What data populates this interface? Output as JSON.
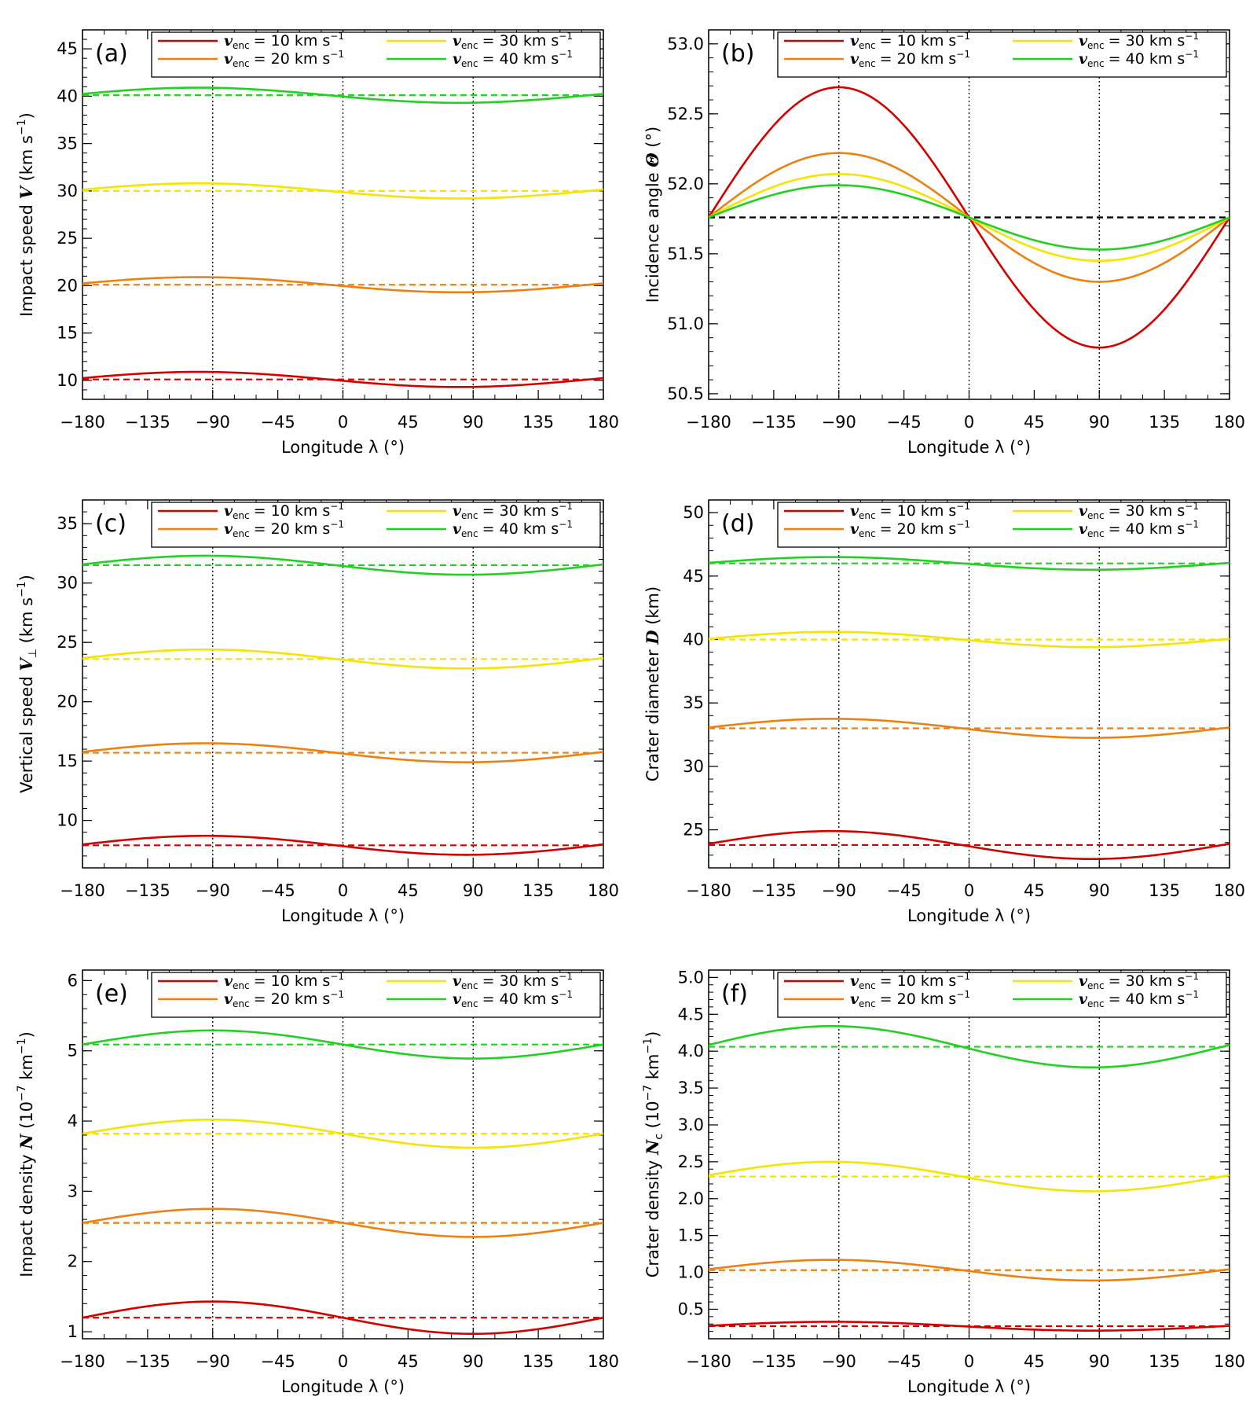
{
  "figure": {
    "legend": [
      {
        "symbol": "v",
        "subscript": "enc",
        "text": "= 10 km s",
        "superscript": "−1",
        "color": "#d40000"
      },
      {
        "symbol": "v",
        "subscript": "enc",
        "text": "= 20 km s",
        "superscript": "−1",
        "color": "#ee8010"
      },
      {
        "symbol": "v",
        "subscript": "enc",
        "text": "= 30 km s",
        "superscript": "−1",
        "color": "#f4e400"
      },
      {
        "symbol": "v",
        "subscript": "enc",
        "text": "= 40 km s",
        "superscript": "−1",
        "color": "#22d022"
      }
    ],
    "reference_line_note": "dashed lines: longitude-averaged values; dotted verticals at λ = −90°, 0°, 90°"
  },
  "chart_data": [
    {
      "panel": "(a)",
      "type": "line",
      "ylabel_pre": "Impact speed ",
      "ylabel_var": "V",
      "ylabel_post": " (km s",
      "ylabel_sup": "−1",
      "ylabel_close": ")",
      "xlabel": "Longitude λ (°)",
      "xlim": [
        -180,
        180
      ],
      "ylim": [
        8,
        47
      ],
      "xticks": [
        -180,
        -135,
        -90,
        -45,
        0,
        45,
        90,
        135,
        180
      ],
      "xtick_labels": [
        "−180",
        "−135",
        "−90",
        "−45",
        "0",
        "45",
        "90",
        "135",
        "180"
      ],
      "yticks": [
        10,
        15,
        20,
        25,
        30,
        35,
        40,
        45
      ],
      "ytick_labels": [
        "10",
        "15",
        "20",
        "25",
        "30",
        "35",
        "40",
        "45"
      ],
      "vlines": [
        -90,
        0,
        90
      ],
      "series": [
        {
          "name": "v_enc = 10 km s−1",
          "mean": 10.1,
          "amplitude": 0.8,
          "phase_shift": -10,
          "color": "#d40000"
        },
        {
          "name": "v_enc = 20 km s−1",
          "mean": 20.1,
          "amplitude": 0.8,
          "phase_shift": -10,
          "color": "#ee8010"
        },
        {
          "name": "v_enc = 30 km s−1",
          "mean": 30.0,
          "amplitude": 0.8,
          "phase_shift": -10,
          "color": "#f4e400"
        },
        {
          "name": "v_enc = 40 km s−1",
          "mean": 40.1,
          "amplitude": 0.8,
          "phase_shift": -10,
          "color": "#22d022"
        }
      ]
    },
    {
      "panel": "(b)",
      "type": "line",
      "ylabel_pre": "Incidence angle ",
      "ylabel_var": "Θ",
      "ylabel_post": " (°)",
      "ylabel_sup": "",
      "ylabel_close": "",
      "xlabel": "Longitude λ (°)",
      "xlim": [
        -180,
        180
      ],
      "ylim": [
        50.46,
        53.1
      ],
      "xticks": [
        -180,
        -135,
        -90,
        -45,
        0,
        45,
        90,
        135,
        180
      ],
      "xtick_labels": [
        "−180",
        "−135",
        "−90",
        "−45",
        "0",
        "45",
        "90",
        "135",
        "180"
      ],
      "yticks": [
        50.5,
        51.0,
        51.5,
        52.0,
        52.5,
        53.0
      ],
      "ytick_labels": [
        "50.5",
        "51.0",
        "51.5",
        "52.0",
        "52.5",
        "53.0"
      ],
      "vlines": [
        -90,
        0,
        90
      ],
      "reference": {
        "value": 51.76,
        "color": "#000000"
      },
      "series": [
        {
          "name": "v_enc = 10 km s−1",
          "mean": 51.76,
          "amplitude": 0.93,
          "phase_shift": 0,
          "color": "#d40000",
          "hide_mean": true
        },
        {
          "name": "v_enc = 20 km s−1",
          "mean": 51.76,
          "amplitude": 0.46,
          "phase_shift": 0,
          "color": "#ee8010",
          "hide_mean": true
        },
        {
          "name": "v_enc = 30 km s−1",
          "mean": 51.76,
          "amplitude": 0.31,
          "phase_shift": 0,
          "color": "#f4e400",
          "hide_mean": true
        },
        {
          "name": "v_enc = 40 km s−1",
          "mean": 51.76,
          "amplitude": 0.23,
          "phase_shift": 0,
          "color": "#22d022",
          "hide_mean": true
        }
      ]
    },
    {
      "panel": "(c)",
      "type": "line",
      "ylabel_pre": "Vertical speed ",
      "ylabel_var": "V",
      "ylabel_var_sub": "⊥",
      "ylabel_post": " (km s",
      "ylabel_sup": "−1",
      "ylabel_close": ")",
      "xlabel": "Longitude λ (°)",
      "xlim": [
        -180,
        180
      ],
      "ylim": [
        6,
        37
      ],
      "xticks": [
        -180,
        -135,
        -90,
        -45,
        0,
        45,
        90,
        135,
        180
      ],
      "xtick_labels": [
        "−180",
        "−135",
        "−90",
        "−45",
        "0",
        "45",
        "90",
        "135",
        "180"
      ],
      "yticks": [
        10,
        15,
        20,
        25,
        30,
        35
      ],
      "ytick_labels": [
        "10",
        "15",
        "20",
        "25",
        "30",
        "35"
      ],
      "vlines": [
        -90,
        0,
        90
      ],
      "series": [
        {
          "name": "v_enc = 10 km s−1",
          "mean": 7.9,
          "amplitude": 0.8,
          "phase_shift": -5,
          "color": "#d40000"
        },
        {
          "name": "v_enc = 20 km s−1",
          "mean": 15.7,
          "amplitude": 0.8,
          "phase_shift": -5,
          "color": "#ee8010"
        },
        {
          "name": "v_enc = 30 km s−1",
          "mean": 23.6,
          "amplitude": 0.8,
          "phase_shift": -5,
          "color": "#f4e400"
        },
        {
          "name": "v_enc = 40 km s−1",
          "mean": 31.5,
          "amplitude": 0.8,
          "phase_shift": -5,
          "color": "#22d022"
        }
      ]
    },
    {
      "panel": "(d)",
      "type": "line",
      "ylabel_pre": "Crater diameter ",
      "ylabel_var": "D",
      "ylabel_post": " (km)",
      "ylabel_sup": "",
      "ylabel_close": "",
      "xlabel": "Longitude λ (°)",
      "xlim": [
        -180,
        180
      ],
      "ylim": [
        22,
        51
      ],
      "xticks": [
        -180,
        -135,
        -90,
        -45,
        0,
        45,
        90,
        135,
        180
      ],
      "xtick_labels": [
        "−180",
        "−135",
        "−90",
        "−45",
        "0",
        "45",
        "90",
        "135",
        "180"
      ],
      "yticks": [
        25,
        30,
        35,
        40,
        45,
        50
      ],
      "ytick_labels": [
        "25",
        "30",
        "35",
        "40",
        "45",
        "50"
      ],
      "vlines": [
        -90,
        0,
        90
      ],
      "series": [
        {
          "name": "v_enc = 10 km s−1",
          "mean": 23.8,
          "amplitude": 1.1,
          "phase_shift": -5,
          "color": "#d40000"
        },
        {
          "name": "v_enc = 20 km s−1",
          "mean": 33.0,
          "amplitude": 0.75,
          "phase_shift": -5,
          "color": "#ee8010"
        },
        {
          "name": "v_enc = 30 km s−1",
          "mean": 40.0,
          "amplitude": 0.6,
          "phase_shift": -5,
          "color": "#f4e400"
        },
        {
          "name": "v_enc = 40 km s−1",
          "mean": 46.0,
          "amplitude": 0.5,
          "phase_shift": -5,
          "color": "#22d022"
        }
      ]
    },
    {
      "panel": "(e)",
      "type": "line",
      "ylabel_pre": "Impact density ",
      "ylabel_var": "N",
      "ylabel_post": " (10",
      "ylabel_sup": "−7",
      "ylabel_close": " km",
      "ylabel_sup2": "−1",
      "ylabel_end": ")",
      "xlabel": "Longitude λ (°)",
      "xlim": [
        -180,
        180
      ],
      "ylim": [
        0.9,
        6.15
      ],
      "xticks": [
        -180,
        -135,
        -90,
        -45,
        0,
        45,
        90,
        135,
        180
      ],
      "xtick_labels": [
        "−180",
        "−135",
        "−90",
        "−45",
        "0",
        "45",
        "90",
        "135",
        "180"
      ],
      "yticks": [
        1,
        2,
        3,
        4,
        5,
        6
      ],
      "ytick_labels": [
        "1",
        "2",
        "3",
        "4",
        "5",
        "6"
      ],
      "vlines": [
        -90,
        0,
        90
      ],
      "series": [
        {
          "name": "v_enc = 10 km s−1",
          "mean": 1.2,
          "amplitude": 0.23,
          "phase_shift": 0,
          "color": "#d40000"
        },
        {
          "name": "v_enc = 20 km s−1",
          "mean": 2.55,
          "amplitude": 0.2,
          "phase_shift": 0,
          "color": "#ee8010"
        },
        {
          "name": "v_enc = 30 km s−1",
          "mean": 3.82,
          "amplitude": 0.2,
          "phase_shift": 0,
          "color": "#f4e400"
        },
        {
          "name": "v_enc = 40 km s−1",
          "mean": 5.09,
          "amplitude": 0.2,
          "phase_shift": 0,
          "color": "#22d022"
        }
      ]
    },
    {
      "panel": "(f)",
      "type": "line",
      "ylabel_pre": "Crater density ",
      "ylabel_var": "N",
      "ylabel_var_sub": "c",
      "ylabel_post": " (10",
      "ylabel_sup": "−7",
      "ylabel_close": " km",
      "ylabel_sup2": "−1",
      "ylabel_end": ")",
      "xlabel": "Longitude λ (°)",
      "xlim": [
        -180,
        180
      ],
      "ylim": [
        0.1,
        5.1
      ],
      "xticks": [
        -180,
        -135,
        -90,
        -45,
        0,
        45,
        90,
        135,
        180
      ],
      "xtick_labels": [
        "−180",
        "−135",
        "−90",
        "−45",
        "0",
        "45",
        "90",
        "135",
        "180"
      ],
      "yticks": [
        0.5,
        1.0,
        1.5,
        2.0,
        2.5,
        3.0,
        3.5,
        4.0,
        4.5,
        5.0
      ],
      "ytick_labels": [
        "0.5",
        "1.0",
        "1.5",
        "2.0",
        "2.5",
        "3.0",
        "3.5",
        "4.0",
        "4.5",
        "5.0"
      ],
      "vlines": [
        -90,
        0,
        90
      ],
      "series": [
        {
          "name": "v_enc = 10 km s−1",
          "mean": 0.27,
          "amplitude": 0.06,
          "phase_shift": -5,
          "color": "#d40000"
        },
        {
          "name": "v_enc = 20 km s−1",
          "mean": 1.03,
          "amplitude": 0.14,
          "phase_shift": -5,
          "color": "#ee8010"
        },
        {
          "name": "v_enc = 30 km s−1",
          "mean": 2.3,
          "amplitude": 0.2,
          "phase_shift": -5,
          "color": "#f4e400"
        },
        {
          "name": "v_enc = 40 km s−1",
          "mean": 4.06,
          "amplitude": 0.28,
          "phase_shift": -5,
          "color": "#22d022"
        }
      ]
    }
  ]
}
